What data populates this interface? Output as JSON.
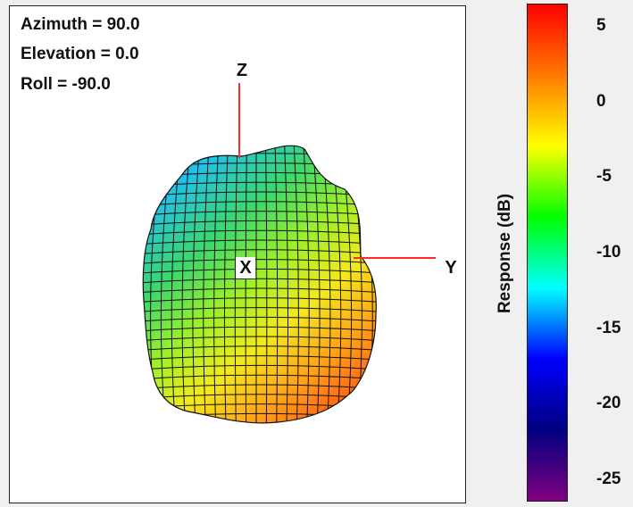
{
  "view": {
    "azimuth": "Azimuth = 90.0",
    "elevation": "Elevation = 0.0",
    "roll": "Roll = -90.0"
  },
  "axes": {
    "z": "Z",
    "y": "Y",
    "x": "X"
  },
  "colorbar": {
    "label": "Response  (dB)",
    "ticks": [
      "5",
      "0",
      "-5",
      "-10",
      "-15",
      "-20",
      "-25"
    ],
    "range": [
      -26.5,
      6.5
    ],
    "colors": [
      "#ff0000",
      "#ff7a00",
      "#ffff00",
      "#00ff00",
      "#00ffff",
      "#0000ff",
      "#000080",
      "#800080"
    ]
  },
  "chart_data": {
    "type": "surface",
    "title": "",
    "colorbar_label": "Response  (dB)",
    "colorbar_range": [
      -26.5,
      6.5
    ],
    "colorbar_ticks": [
      5,
      0,
      -5,
      -10,
      -15,
      -20,
      -25
    ],
    "view": {
      "azimuth": 90.0,
      "elevation": 0.0,
      "roll": -90.0
    },
    "axes": [
      "X",
      "Y",
      "Z"
    ]
  }
}
